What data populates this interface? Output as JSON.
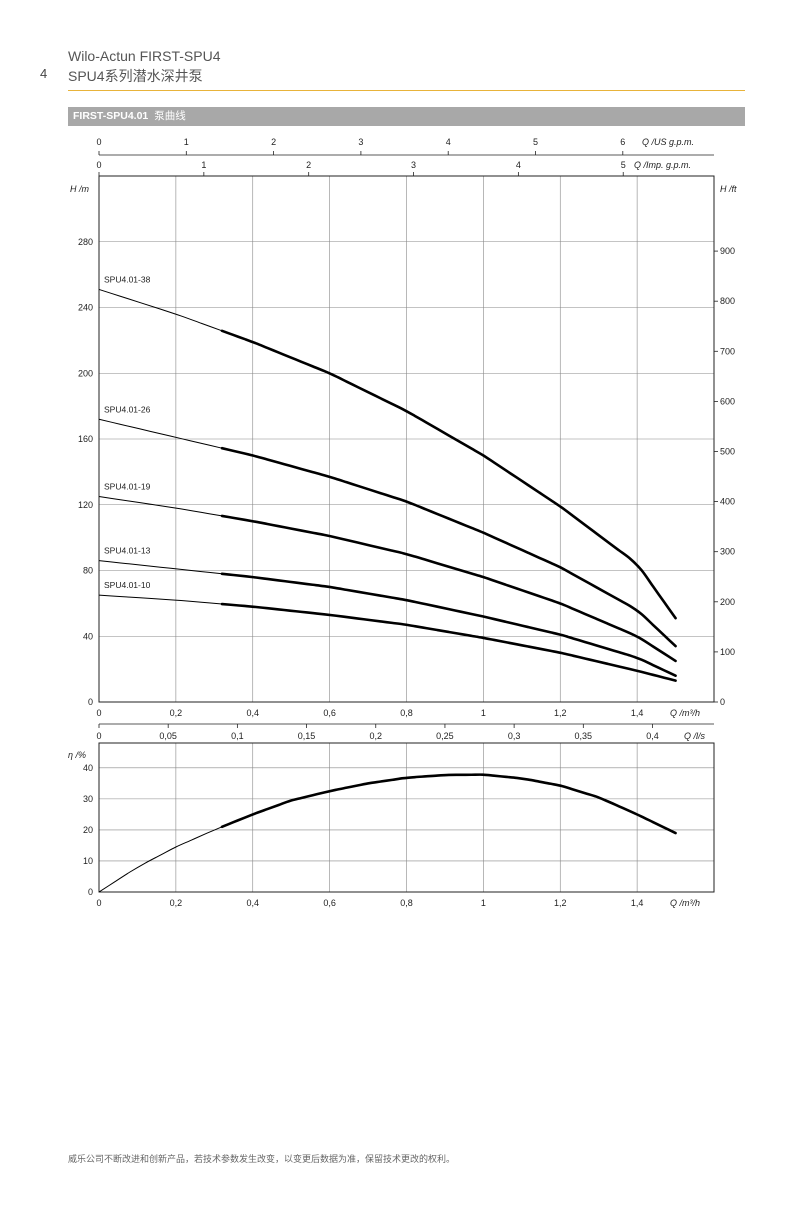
{
  "page_number": "4",
  "header": {
    "line1": "Wilo-Actun FIRST-SPU4",
    "line2": "SPU4系列潜水深井泵"
  },
  "band": {
    "model": "FIRST-SPU4.01",
    "title": "泵曲线"
  },
  "footer": "威乐公司不断改进和创新产品，若技术参数发生改变，以变更后数据为准，保留技术更改的权利。",
  "chart_data": [
    {
      "type": "line",
      "title": "",
      "xlabel": "Q /m³/h",
      "ylabel": "H /m",
      "ylabel_right": "H /ft",
      "xlim": [
        0,
        1.6
      ],
      "ylim": [
        0,
        320
      ],
      "yticks": [
        0,
        40,
        80,
        120,
        160,
        200,
        240,
        280
      ],
      "yticks_right": [
        0,
        100,
        200,
        300,
        400,
        500,
        600,
        700,
        800,
        900
      ],
      "xticks": [
        0,
        0.2,
        0.4,
        0.6,
        0.8,
        1,
        1.2,
        1.4
      ],
      "xtick_labels": [
        "0",
        "0,2",
        "0,4",
        "0,6",
        "0,8",
        "1",
        "1,2",
        "1,4"
      ],
      "top_axes": [
        {
          "label": "Q /US g.p.m.",
          "ticks": [
            "0",
            "1",
            "2",
            "3",
            "4",
            "5",
            "6"
          ]
        },
        {
          "label": "Q /Imp. g.p.m.",
          "ticks": [
            "0",
            "1",
            "2",
            "3",
            "4",
            "5"
          ]
        }
      ],
      "bottom_axis2": {
        "label": "Q /l/s",
        "ticks": [
          "0",
          "0,05",
          "0,1",
          "0,15",
          "0,2",
          "0,25",
          "0,3",
          "0,35",
          "0,4"
        ]
      },
      "grid": true,
      "thick_range": [
        0.32,
        1.5
      ],
      "series": [
        {
          "name": "SPU4.01-38",
          "x": [
            0,
            0.2,
            0.4,
            0.6,
            0.8,
            1.0,
            1.2,
            1.4,
            1.5
          ],
          "y": [
            251,
            236,
            219,
            200,
            177,
            150,
            119,
            84,
            51
          ]
        },
        {
          "name": "SPU4.01-26",
          "x": [
            0,
            0.2,
            0.4,
            0.6,
            0.8,
            1.0,
            1.2,
            1.4,
            1.5
          ],
          "y": [
            172,
            161,
            150,
            137,
            122,
            103,
            82,
            56,
            34
          ]
        },
        {
          "name": "SPU4.01-19",
          "x": [
            0,
            0.2,
            0.4,
            0.6,
            0.8,
            1.0,
            1.2,
            1.4,
            1.5
          ],
          "y": [
            125,
            118,
            110,
            101,
            90,
            76,
            60,
            40,
            25
          ]
        },
        {
          "name": "SPU4.01-13",
          "x": [
            0,
            0.2,
            0.4,
            0.6,
            0.8,
            1.0,
            1.2,
            1.4,
            1.5
          ],
          "y": [
            86,
            81,
            76,
            70,
            62,
            52,
            41,
            27,
            16
          ]
        },
        {
          "name": "SPU4.01-10",
          "x": [
            0,
            0.2,
            0.4,
            0.6,
            0.8,
            1.0,
            1.2,
            1.4,
            1.5
          ],
          "y": [
            65,
            62,
            58,
            53,
            47,
            39,
            30,
            19,
            13
          ]
        }
      ]
    },
    {
      "type": "line",
      "title": "",
      "xlabel": "Q /m³/h",
      "ylabel": "η /%",
      "xlim": [
        0,
        1.6
      ],
      "ylim": [
        0,
        48
      ],
      "yticks": [
        0,
        10,
        20,
        30,
        40
      ],
      "xticks": [
        0,
        0.2,
        0.4,
        0.6,
        0.8,
        1,
        1.2,
        1.4
      ],
      "xtick_labels": [
        "0",
        "0,2",
        "0,4",
        "0,6",
        "0,8",
        "1",
        "1,2",
        "1,4"
      ],
      "grid": true,
      "thick_range": [
        0.32,
        1.5
      ],
      "series": [
        {
          "name": "",
          "x": [
            0,
            0.1,
            0.2,
            0.3,
            0.4,
            0.5,
            0.6,
            0.7,
            0.8,
            0.9,
            1.0,
            1.1,
            1.2,
            1.3,
            1.4,
            1.5
          ],
          "y": [
            0,
            8,
            14.5,
            20,
            25,
            29.5,
            32.5,
            35,
            36.8,
            37.7,
            37.8,
            36.6,
            34.3,
            30.5,
            25,
            19
          ]
        }
      ]
    }
  ]
}
